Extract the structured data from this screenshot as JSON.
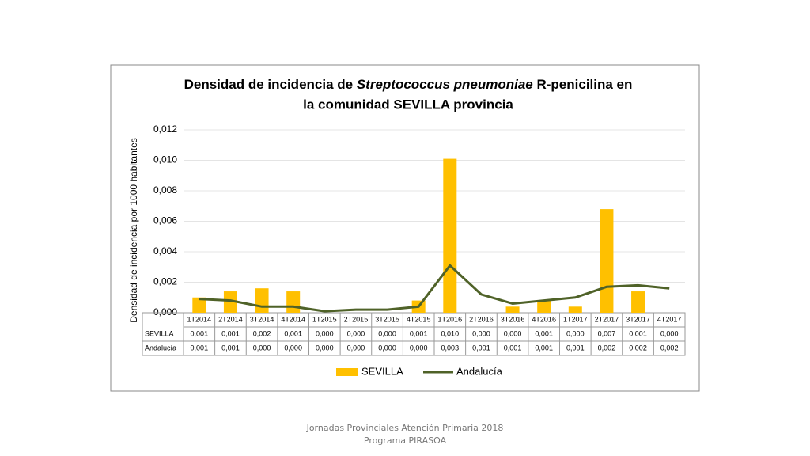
{
  "chart_data": {
    "type": "bar_line",
    "title": [
      "Densidad de incidencia de ",
      "Streptococcus pneumoniae",
      " R-penicilina en",
      "la comunidad SEVILLA provincia"
    ],
    "y_label": "Densidad de incidencia por 1000 habitantes",
    "categories": [
      "1T2014",
      "2T2014",
      "3T2014",
      "4T2014",
      "1T2015",
      "2T2015",
      "3T2015",
      "4T2015",
      "1T2016",
      "2T2016",
      "3T2016",
      "4T2016",
      "1T2017",
      "2T2017",
      "3T2017",
      "4T2017"
    ],
    "series": [
      {
        "name": "SEVILLA",
        "type": "bar",
        "color": "#ffc000",
        "values": [
          0.001,
          0.0014,
          0.0016,
          0.0014,
          0,
          0,
          0,
          0.0008,
          0.0101,
          0,
          0.0004,
          0.0008,
          0.0004,
          0.0068,
          0.0014,
          0
        ],
        "value_labels": [
          "0,001",
          "0,001",
          "0,002",
          "0,001",
          "0,000",
          "0,000",
          "0,000",
          "0,001",
          "0,010",
          "0,000",
          "0,000",
          "0,001",
          "0,000",
          "0,007",
          "0,001",
          "0,000"
        ]
      },
      {
        "name": "Andalucía",
        "type": "line",
        "color": "#4f6228",
        "values": [
          0.0009,
          0.0008,
          0.0004,
          0.0004,
          0.0001,
          0.0002,
          0.0002,
          0.0004,
          0.0031,
          0.0012,
          0.0006,
          0.0008,
          0.001,
          0.0017,
          0.0018,
          0.0016
        ],
        "value_labels": [
          "0,001",
          "0,001",
          "0,000",
          "0,000",
          "0,000",
          "0,000",
          "0,000",
          "0,000",
          "0,003",
          "0,001",
          "0,001",
          "0,001",
          "0,001",
          "0,002",
          "0,002",
          "0,002"
        ]
      }
    ],
    "ylim": [
      0,
      0.012
    ],
    "yticks": [
      {
        "value": 0,
        "label": "0,000"
      },
      {
        "value": 0.002,
        "label": "0,002"
      },
      {
        "value": 0.004,
        "label": "0,004"
      },
      {
        "value": 0.006,
        "label": "0,006"
      },
      {
        "value": 0.008,
        "label": "0,008"
      },
      {
        "value": 0.01,
        "label": "0,010"
      },
      {
        "value": 0.012,
        "label": "0,012"
      }
    ],
    "grid": true,
    "legend": "bottom"
  },
  "footer": "Jornadas Provinciales Atención Primaria 2018 Programa PIRASOA"
}
